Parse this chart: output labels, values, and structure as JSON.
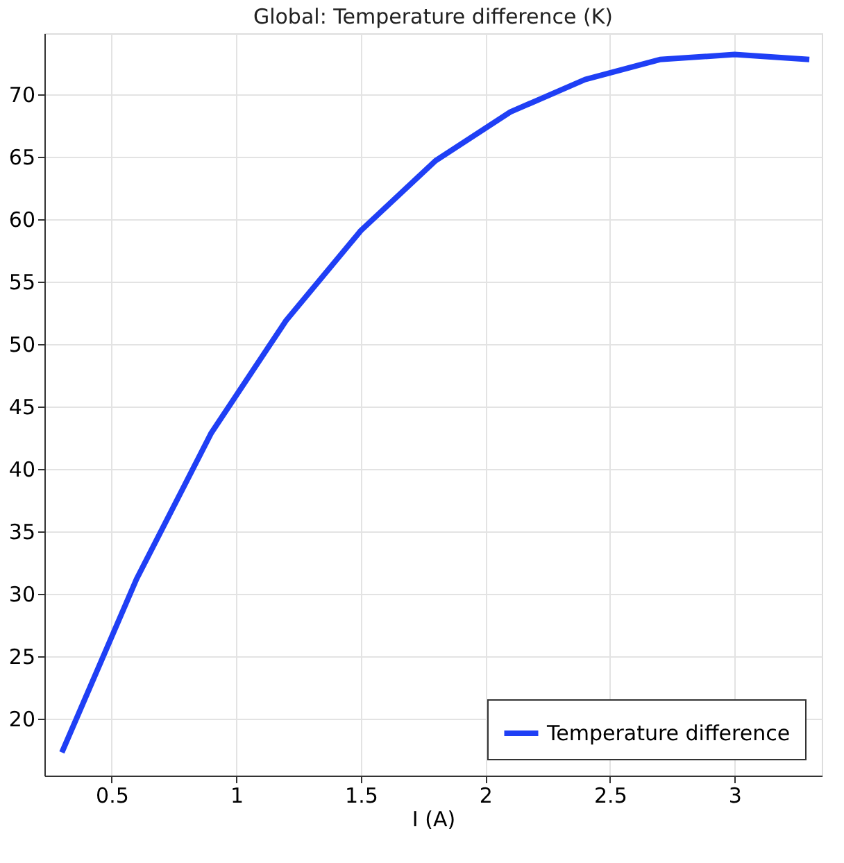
{
  "chart_data": {
    "type": "line",
    "title": "Global: Temperature difference (K)",
    "xlabel": "I (A)",
    "x": [
      0.3,
      0.6,
      0.9,
      1.2,
      1.5,
      1.8,
      2.1,
      2.4,
      2.7,
      3.0,
      3.3
    ],
    "series": [
      {
        "name": "Temperature difference",
        "color": "#1f3ff5",
        "values": [
          17.3,
          31.2,
          42.9,
          51.9,
          59.1,
          64.7,
          68.6,
          71.2,
          72.8,
          73.2,
          72.8
        ]
      }
    ],
    "xlim": [
      0.23,
      3.35
    ],
    "ylim": [
      15.45,
      74.9
    ],
    "xticks": [
      0.5,
      1,
      1.5,
      2,
      2.5,
      3
    ],
    "yticks": [
      20,
      25,
      30,
      35,
      40,
      45,
      50,
      55,
      60,
      65,
      70
    ],
    "grid": true,
    "legend": "bottom right",
    "marker": "none",
    "line_style": "solid"
  }
}
